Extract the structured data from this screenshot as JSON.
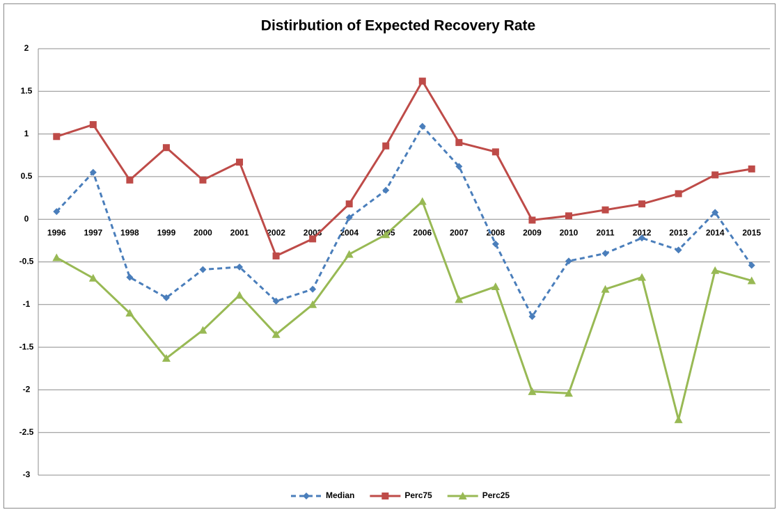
{
  "chart_data": {
    "type": "line",
    "title": "Distirbution of Expected Recovery Rate",
    "categories": [
      "1996",
      "1997",
      "1998",
      "1999",
      "2000",
      "2001",
      "2002",
      "2003",
      "2004",
      "2005",
      "2006",
      "2007",
      "2008",
      "2009",
      "2010",
      "2011",
      "2012",
      "2013",
      "2014",
      "2015"
    ],
    "series": [
      {
        "name": "Median",
        "color": "#4a7ebb",
        "line_style": "dashed",
        "marker": "diamond",
        "values": [
          0.09,
          0.55,
          -0.68,
          -0.92,
          -0.59,
          -0.56,
          -0.96,
          -0.82,
          0.02,
          0.34,
          1.09,
          0.62,
          -0.29,
          -1.14,
          -0.49,
          -0.4,
          -0.22,
          -0.36,
          0.08,
          -0.54
        ]
      },
      {
        "name": "Perc75",
        "color": "#be4b48",
        "line_style": "solid",
        "marker": "square",
        "values": [
          0.97,
          1.11,
          0.46,
          0.84,
          0.46,
          0.67,
          -0.43,
          -0.23,
          0.18,
          0.86,
          1.62,
          0.9,
          0.79,
          -0.01,
          0.04,
          0.11,
          0.18,
          0.3,
          0.52,
          0.59
        ]
      },
      {
        "name": "Perc25",
        "color": "#98b954",
        "line_style": "solid",
        "marker": "triangle",
        "values": [
          -0.45,
          -0.69,
          -1.1,
          -1.63,
          -1.3,
          -0.89,
          -1.35,
          -1.0,
          -0.41,
          -0.18,
          0.21,
          -0.94,
          -0.79,
          -2.02,
          -2.04,
          -0.82,
          -0.68,
          -2.35,
          -0.6,
          -0.72
        ]
      }
    ],
    "ylim": [
      -3,
      2
    ],
    "yticks": [
      2,
      1.5,
      1,
      0.5,
      0,
      -0.5,
      -1,
      -1.5,
      -2,
      -2.5,
      -3
    ],
    "grid": true,
    "legend": "bottom"
  }
}
